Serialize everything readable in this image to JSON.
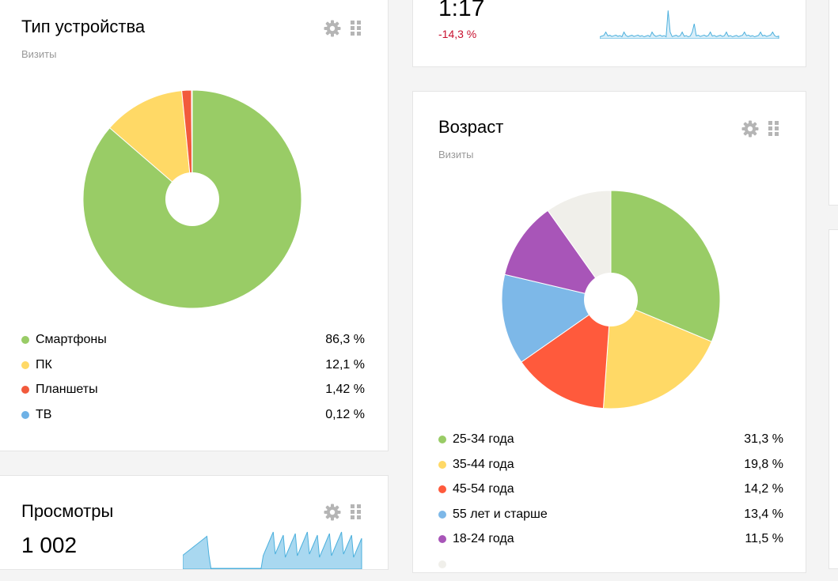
{
  "device": {
    "title": "Тип устройства",
    "subtitle": "Визиты",
    "items": [
      {
        "label": "Смартфоны",
        "value": "86,3 %",
        "pct": 86.3,
        "color": "#99cc66"
      },
      {
        "label": "ПК",
        "value": "12,1 %",
        "pct": 12.1,
        "color": "#ffd966"
      },
      {
        "label": "Планшеты",
        "value": "1,42 %",
        "pct": 1.42,
        "color": "#f25a3c"
      },
      {
        "label": "ТВ",
        "value": "0,12 %",
        "pct": 0.12,
        "color": "#6fb2e6"
      }
    ]
  },
  "views": {
    "title": "Просмотры",
    "value": "1 002"
  },
  "duration": {
    "value": "1:17",
    "delta": "-14,3 %"
  },
  "age": {
    "title": "Возраст",
    "subtitle": "Визиты",
    "items": [
      {
        "label": "25-34 года",
        "value": "31,3 %",
        "pct": 31.3,
        "color": "#99cc66"
      },
      {
        "label": "35-44 года",
        "value": "19,8 %",
        "pct": 19.8,
        "color": "#ffd966"
      },
      {
        "label": "45-54 года",
        "value": "14,2 %",
        "pct": 14.2,
        "color": "#ff5a3c"
      },
      {
        "label": "55 лет и старше",
        "value": "13,4 %",
        "pct": 13.4,
        "color": "#7db8e8"
      },
      {
        "label": "18-24 года",
        "value": "11,5 %",
        "pct": 11.5,
        "color": "#a855b8"
      },
      {
        "label": "",
        "value": "",
        "pct": 9.8,
        "color": "#f0efea"
      }
    ]
  },
  "icons": {
    "settings": "gear-icon",
    "drag": "drag-handle-icon"
  },
  "chart_data": [
    {
      "type": "pie",
      "title": "Тип устройства",
      "subtitle": "Визиты",
      "categories": [
        "Смартфоны",
        "ПК",
        "Планшеты",
        "ТВ"
      ],
      "values": [
        86.3,
        12.1,
        1.42,
        0.12
      ],
      "legend": "bottom"
    },
    {
      "type": "pie",
      "title": "Возраст",
      "subtitle": "Визиты",
      "categories": [
        "25-34 года",
        "35-44 года",
        "45-54 года",
        "55 лет и старше",
        "18-24 года"
      ],
      "values": [
        31.3,
        19.8,
        14.2,
        13.4,
        11.5
      ],
      "legend": "bottom"
    }
  ]
}
